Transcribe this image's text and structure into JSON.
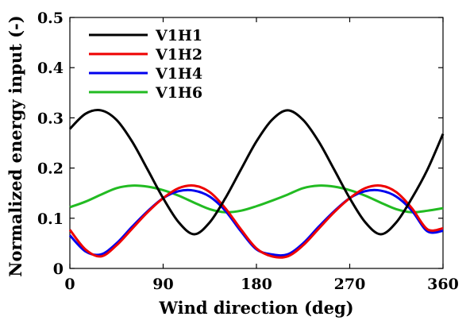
{
  "chart_data": {
    "type": "line",
    "xlabel": "Wind direction (deg)",
    "ylabel": "Normalized energy input (-)",
    "xlim": [
      0,
      360
    ],
    "ylim": [
      0,
      0.5
    ],
    "xticks": [
      "0",
      "90",
      "180",
      "270",
      "360"
    ],
    "yticks": [
      "0",
      "0.1",
      "0.2",
      "0.3",
      "0.4",
      "0.5"
    ],
    "xtick_values": [
      0,
      90,
      180,
      270,
      360
    ],
    "ytick_values": [
      0,
      0.1,
      0.2,
      0.3,
      0.4,
      0.5
    ],
    "grid": false,
    "legend_position": "top-left",
    "x": [
      0,
      15,
      30,
      45,
      60,
      75,
      90,
      105,
      120,
      135,
      150,
      165,
      180,
      195,
      210,
      225,
      240,
      255,
      270,
      285,
      300,
      315,
      330,
      345,
      360
    ],
    "series": [
      {
        "name": "V1H1",
        "color": "#000000",
        "values": [
          0.278,
          0.308,
          0.315,
          0.296,
          0.253,
          0.197,
          0.14,
          0.092,
          0.068,
          0.092,
          0.14,
          0.197,
          0.253,
          0.296,
          0.315,
          0.296,
          0.253,
          0.197,
          0.14,
          0.092,
          0.068,
          0.092,
          0.14,
          0.197,
          0.268
        ]
      },
      {
        "name": "V1H2",
        "color": "#ee0000",
        "values": [
          0.077,
          0.038,
          0.024,
          0.046,
          0.079,
          0.112,
          0.14,
          0.16,
          0.165,
          0.152,
          0.12,
          0.078,
          0.04,
          0.024,
          0.024,
          0.046,
          0.079,
          0.112,
          0.14,
          0.16,
          0.165,
          0.152,
          0.12,
          0.078,
          0.08
        ]
      },
      {
        "name": "V1H4",
        "color": "#0000ee",
        "values": [
          0.066,
          0.034,
          0.028,
          0.05,
          0.083,
          0.114,
          0.14,
          0.154,
          0.155,
          0.143,
          0.115,
          0.074,
          0.038,
          0.028,
          0.028,
          0.05,
          0.083,
          0.114,
          0.14,
          0.154,
          0.155,
          0.143,
          0.115,
          0.074,
          0.075
        ]
      },
      {
        "name": "V1H6",
        "color": "#22bb22",
        "values": [
          0.122,
          0.133,
          0.147,
          0.16,
          0.165,
          0.163,
          0.156,
          0.145,
          0.131,
          0.118,
          0.112,
          0.115,
          0.124,
          0.135,
          0.147,
          0.16,
          0.165,
          0.163,
          0.156,
          0.145,
          0.131,
          0.118,
          0.112,
          0.115,
          0.12
        ]
      }
    ]
  }
}
